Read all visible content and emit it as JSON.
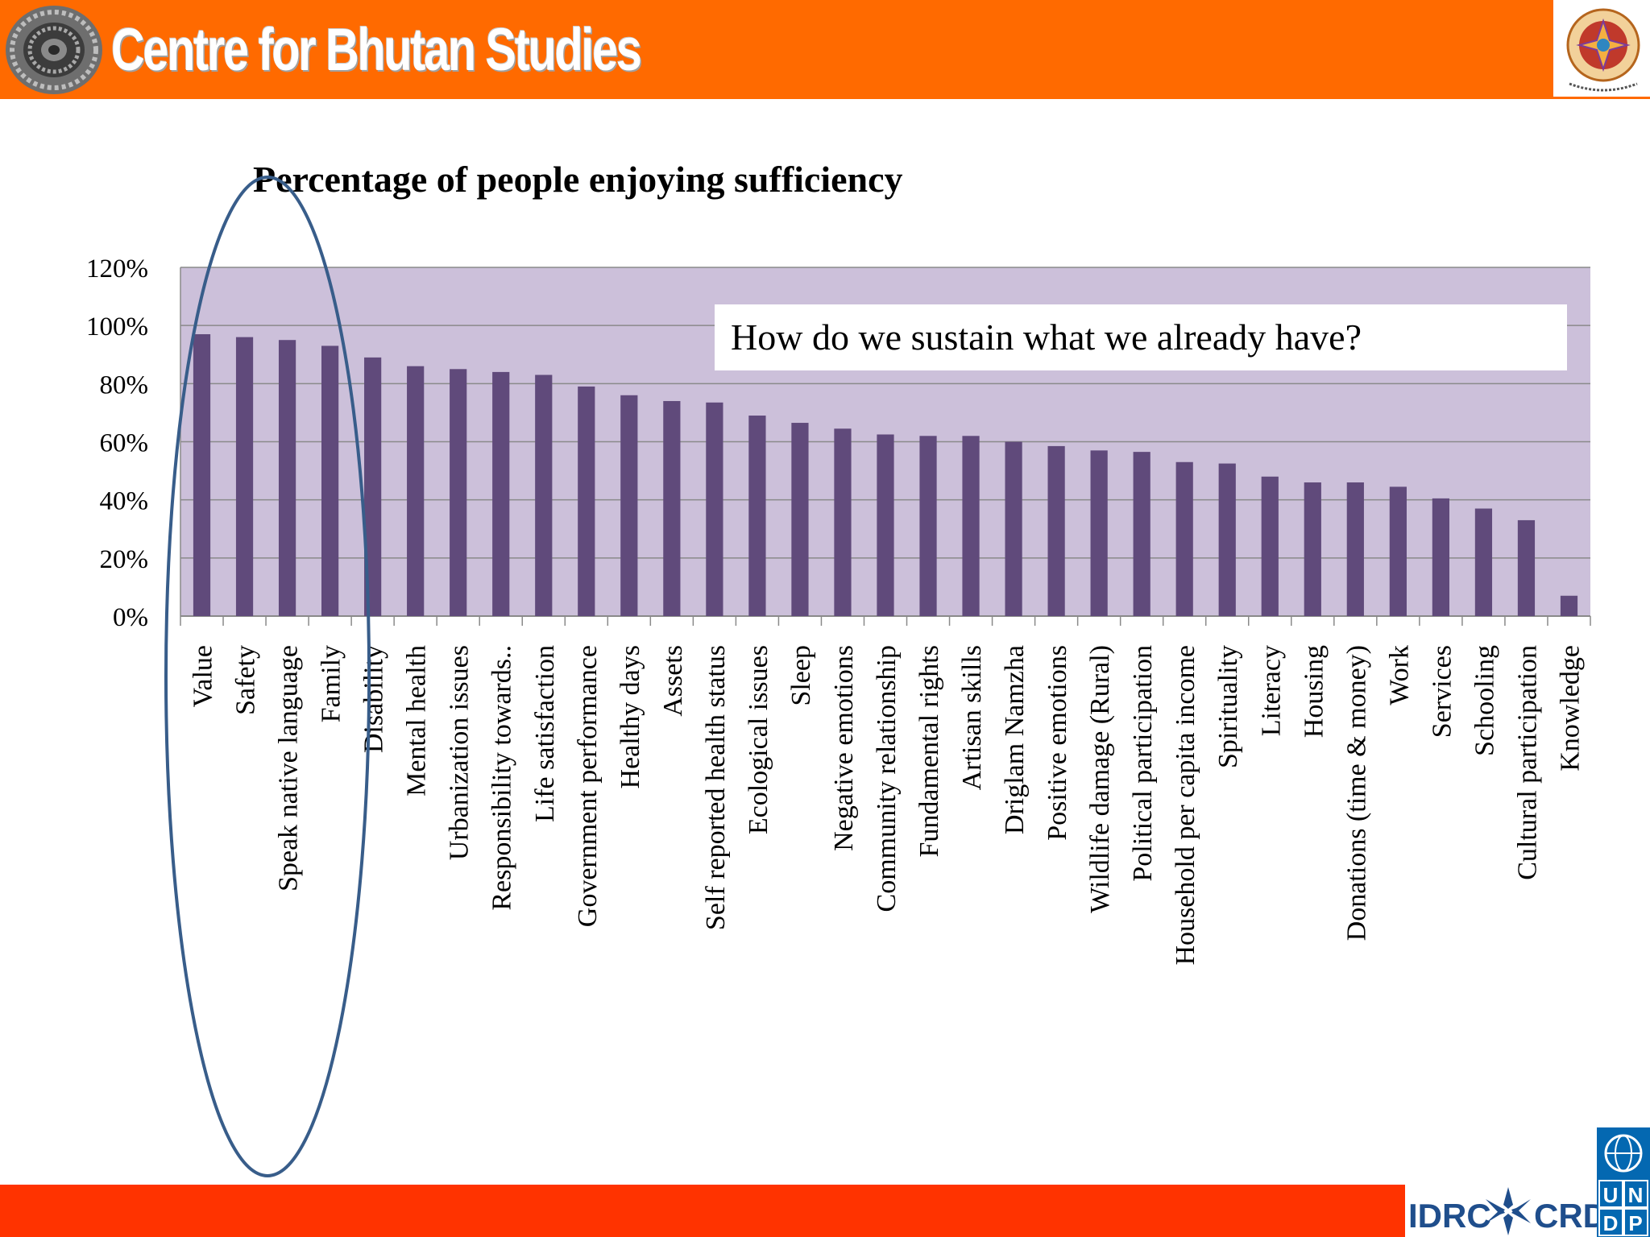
{
  "header": {
    "title": "Centre for Bhutan Studies",
    "logo_icon": "dharma-wheel-icon",
    "emblem_icon": "bhutan-emblem-icon"
  },
  "footer": {
    "idrc_text": "IDRC",
    "crdi_text": "CRDI",
    "undp_letters": [
      "U",
      "N",
      "D",
      "P"
    ]
  },
  "colors": {
    "header_bg": "#ff6a00",
    "footer_bg": "#ff3300",
    "plot_area": "#ccc0da",
    "bar": "#604a7b",
    "ellipse": "#385d8a",
    "undp_blue": "#0468b1"
  },
  "chart_data": {
    "type": "bar",
    "title": "Percentage of people  enjoying sufficiency",
    "annotation": "How do we sustain what we already have?",
    "ylim": [
      0,
      1.2
    ],
    "yticks": [
      "0%",
      "20%",
      "40%",
      "60%",
      "80%",
      "100%",
      "120%"
    ],
    "grid": true,
    "categories": [
      "Value",
      "Safety",
      "Speak native language",
      "Family",
      "Disability",
      "Mental health",
      "Urbanization issues",
      "Responsibility towards..",
      "Life satisfaction",
      "Government performance",
      "Healthy days",
      "Assets",
      "Self reported health status",
      "Ecological issues",
      "Sleep",
      "Negative emotions",
      "Community relationship",
      "Fundamental rights",
      "Artisan skills",
      "Driglam Namzha",
      "Positive emotions",
      "Wildlife damage (Rural)",
      "Political participation",
      "Household per capita income",
      "Spirituality",
      "Literacy",
      "Housing",
      "Donations (time & money)",
      "Work",
      "Services",
      "Schooling",
      "Cultural participation",
      "Knowledge"
    ],
    "values": [
      0.97,
      0.96,
      0.95,
      0.93,
      0.89,
      0.86,
      0.85,
      0.84,
      0.83,
      0.79,
      0.76,
      0.74,
      0.735,
      0.69,
      0.665,
      0.645,
      0.625,
      0.62,
      0.62,
      0.6,
      0.585,
      0.57,
      0.565,
      0.53,
      0.525,
      0.48,
      0.46,
      0.46,
      0.445,
      0.405,
      0.37,
      0.33,
      0.07
    ],
    "highlight_indices": [
      0,
      1,
      2,
      3
    ]
  }
}
